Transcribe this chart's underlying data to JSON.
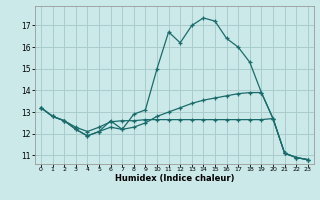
{
  "xlabel": "Humidex (Indice chaleur)",
  "background_color": "#cce9e9",
  "grid_color": "#aacccc",
  "line_color": "#1a6b6b",
  "xticks": [
    0,
    1,
    2,
    3,
    4,
    5,
    6,
    7,
    8,
    9,
    10,
    11,
    12,
    13,
    14,
    15,
    16,
    17,
    18,
    19,
    20,
    21,
    22,
    23
  ],
  "yticks": [
    11,
    12,
    13,
    14,
    15,
    16,
    17
  ],
  "xlim": [
    -0.5,
    23.5
  ],
  "ylim": [
    10.6,
    17.9
  ],
  "curve1_x": [
    0,
    1,
    2,
    3,
    4,
    5,
    6,
    7,
    8,
    9,
    10,
    11,
    12,
    13,
    14,
    15,
    16,
    17,
    18,
    19,
    20,
    21,
    22,
    23
  ],
  "curve1_y": [
    13.2,
    12.8,
    12.6,
    12.2,
    11.9,
    12.1,
    12.6,
    12.2,
    12.9,
    13.1,
    15.0,
    16.7,
    16.2,
    17.0,
    17.35,
    17.2,
    16.4,
    16.0,
    15.3,
    13.9,
    12.7,
    11.1,
    10.9,
    10.8
  ],
  "curve2_x": [
    0,
    1,
    2,
    3,
    4,
    5,
    6,
    7,
    8,
    9,
    10,
    11,
    12,
    13,
    14,
    15,
    16,
    17,
    18,
    19,
    20,
    21,
    22,
    23
  ],
  "curve2_y": [
    13.2,
    12.8,
    12.6,
    12.3,
    12.1,
    12.3,
    12.55,
    12.6,
    12.6,
    12.65,
    12.65,
    12.65,
    12.65,
    12.65,
    12.65,
    12.65,
    12.65,
    12.65,
    12.65,
    12.65,
    12.7,
    11.1,
    10.9,
    10.8
  ],
  "curve3_x": [
    0,
    1,
    2,
    3,
    4,
    5,
    6,
    7,
    8,
    9,
    10,
    11,
    12,
    13,
    14,
    15,
    16,
    17,
    18,
    19,
    20,
    21,
    22,
    23
  ],
  "curve3_y": [
    13.2,
    12.8,
    12.6,
    12.2,
    11.9,
    12.1,
    12.3,
    12.2,
    12.3,
    12.5,
    12.8,
    13.0,
    13.2,
    13.4,
    13.55,
    13.65,
    13.75,
    13.85,
    13.9,
    13.9,
    12.7,
    11.1,
    10.9,
    10.8
  ]
}
